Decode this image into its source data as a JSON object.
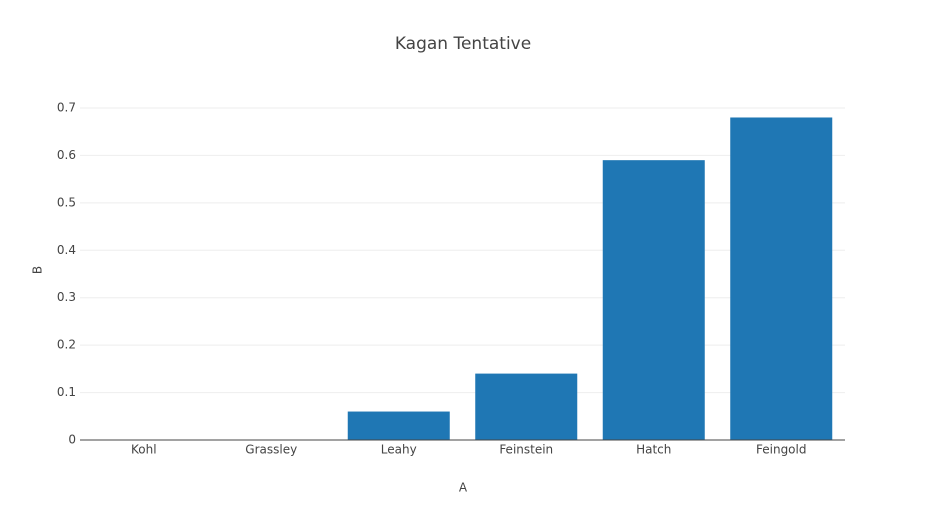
{
  "chart_data": {
    "type": "bar",
    "title": "Kagan Tentative",
    "x_label": "A",
    "y_label": "B",
    "categories": [
      "Kohl",
      "Grassley",
      "Leahy",
      "Feinstein",
      "Hatch",
      "Feingold"
    ],
    "values": [
      0,
      0,
      0.06,
      0.14,
      0.59,
      0.68
    ],
    "color": "#1f77b4",
    "ylim": [
      0,
      0.7
    ],
    "yticks": [
      0,
      0.1,
      0.2,
      0.3,
      0.4,
      0.5,
      0.6,
      0.7
    ],
    "grid": true
  }
}
